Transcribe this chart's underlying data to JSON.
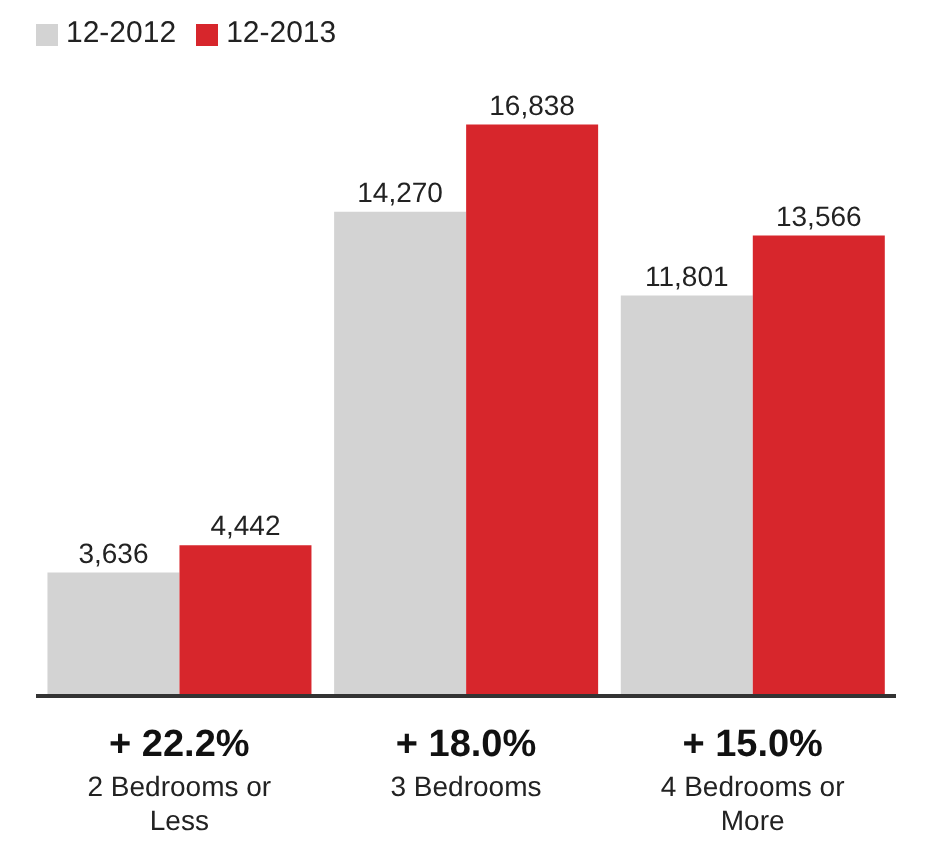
{
  "chart_data": {
    "type": "bar",
    "categories": [
      "2 Bedrooms or Less",
      "3 Bedrooms",
      "4 Bedrooms or More"
    ],
    "series": [
      {
        "name": "12-2012",
        "color": "#d3d3d3",
        "values": [
          3636,
          14270,
          11801
        ],
        "value_labels": [
          "3,636",
          "14,270",
          "11,801"
        ]
      },
      {
        "name": "12-2013",
        "color": "#d7262c",
        "values": [
          4442,
          16838,
          13566
        ],
        "value_labels": [
          "4,442",
          "16,838",
          "13,566"
        ]
      }
    ],
    "legend": "top left",
    "grid": false,
    "annotations": [
      "+ 22.2%",
      "+ 18.0%",
      "+ 15.0%"
    ]
  }
}
